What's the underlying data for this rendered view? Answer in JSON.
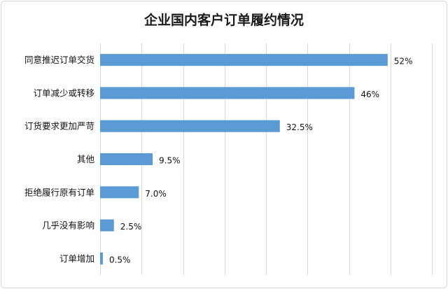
{
  "chart_data": {
    "type": "bar",
    "orientation": "horizontal",
    "title": "企业国内客户订单履约情况",
    "categories": [
      "同意推迟订单交货",
      "订单减少或转移",
      "订货要求更加严苛",
      "其他",
      "拒绝履行原有订单",
      "几乎没有影响",
      "订单增加"
    ],
    "values": [
      52,
      46,
      32.5,
      9.5,
      7.0,
      2.5,
      0.5
    ],
    "value_labels": [
      "52%",
      "46%",
      "32.5%",
      "9.5%",
      "7.0%",
      "2.5%",
      "0.5%"
    ],
    "xlim": [
      0,
      60
    ],
    "x_gridlines": true,
    "gridline_step": 7.5,
    "bar_color": "#5b9bd5",
    "gridline_color": "#d9d9d9"
  }
}
